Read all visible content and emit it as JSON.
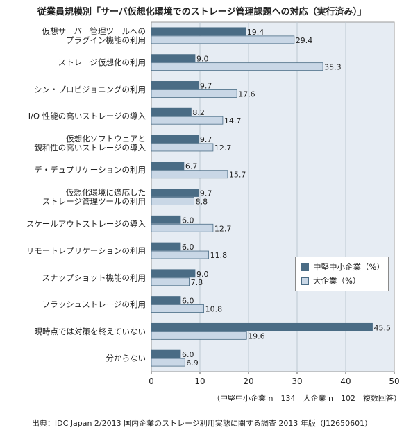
{
  "chart_data": {
    "type": "bar",
    "orientation": "horizontal",
    "title": "従業員規模別「サーバ仮想化環境でのストレージ管理課題への対応（実行済み）」",
    "categories": [
      [
        "仮想サーバー管理ツールへの",
        "プラグイン機能の利用"
      ],
      [
        "ストレージ仮想化の利用"
      ],
      [
        "シン・プロビジョニングの利用"
      ],
      [
        "I/O 性能の高いストレージの導入"
      ],
      [
        "仮想化ソフトウェアと",
        "親和性の高いストレージの導入"
      ],
      [
        "デ・デュプリケーションの利用"
      ],
      [
        "仮想化環境に適応した",
        "ストレージ管理ツールの利用"
      ],
      [
        "スケールアウトストレージの導入"
      ],
      [
        "リモートレプリケーションの利用"
      ],
      [
        "スナップショット機能の利用"
      ],
      [
        "フラッシュストレージの利用"
      ],
      [
        "現時点では対策を終えていない"
      ],
      [
        "分からない"
      ]
    ],
    "series": [
      {
        "name": "中堅中小企業（%）",
        "color": "#4a6c85",
        "values": [
          19.4,
          9.0,
          9.7,
          8.2,
          9.7,
          6.7,
          9.7,
          6.0,
          6.0,
          9.0,
          6.0,
          45.5,
          6.0
        ]
      },
      {
        "name": "大企業（%）",
        "color": "#c9d7e6",
        "values": [
          29.4,
          35.3,
          17.6,
          14.7,
          12.7,
          15.7,
          8.8,
          12.7,
          11.8,
          7.8,
          10.8,
          19.6,
          6.9
        ]
      }
    ],
    "value_labels": [
      [
        "19.4",
        "9.0",
        "9.7",
        "8.2",
        "9.7",
        "6.7",
        "9.7",
        "6.0",
        "6.0",
        "9.0",
        "6.0",
        "45.5",
        "6.0"
      ],
      [
        "29.4",
        "35.3",
        "17.6",
        "14.7",
        "12.7",
        "15.7",
        "8.8",
        "12.7",
        "11.8",
        "7.8",
        "10.8",
        "19.6",
        "6.9"
      ]
    ],
    "xlim": [
      0,
      50
    ],
    "xticks": [
      0,
      10,
      20,
      30,
      40,
      50
    ],
    "grid": true,
    "legend_position": "bottom-right",
    "plot_background": "#e6ecf3",
    "note": "（中堅中小企業 n＝134　大企業 n＝102　複数回答）",
    "source": "出典：IDC Japan 2/2013 国内企業のストレージ利用実態に関する調査 2013 年版（J12650601）"
  }
}
